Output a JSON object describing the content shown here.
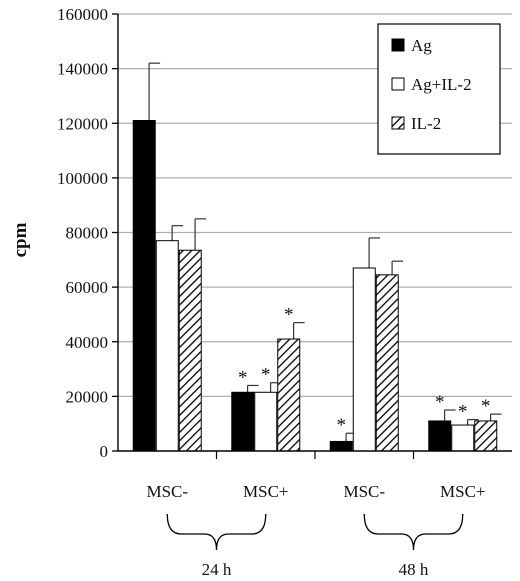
{
  "chart_data": {
    "type": "bar",
    "title": "",
    "xlabel": "",
    "ylabel": "cpm",
    "ylim": [
      0,
      160000
    ],
    "yticks": [
      0,
      20000,
      40000,
      60000,
      80000,
      100000,
      120000,
      140000,
      160000
    ],
    "ytick_labels": [
      "0",
      "20000",
      "40000",
      "60000",
      "80000",
      "100000",
      "120000",
      "140000",
      "160000"
    ],
    "grid": "horizontal",
    "legend_position": "top-right",
    "categories": [
      "MSC-",
      "MSC+",
      "MSC-",
      "MSC+"
    ],
    "groups": [
      {
        "label": "24 h",
        "categories": [
          0,
          1
        ]
      },
      {
        "label": "48 h",
        "categories": [
          2,
          3
        ]
      }
    ],
    "series": [
      {
        "name": "Ag",
        "style": "solid-black",
        "values": [
          121000,
          21500,
          3500,
          11000
        ],
        "errors": [
          21000,
          2500,
          3000,
          4000
        ],
        "significant": [
          false,
          true,
          true,
          true
        ]
      },
      {
        "name": "Ag+IL-2",
        "style": "white",
        "values": [
          77000,
          21500,
          67000,
          9500
        ],
        "errors": [
          5500,
          3500,
          11000,
          2000
        ],
        "significant": [
          false,
          true,
          false,
          true
        ]
      },
      {
        "name": "IL-2",
        "style": "hatched",
        "values": [
          73500,
          41000,
          64500,
          11000
        ],
        "errors": [
          11500,
          6000,
          5000,
          2500
        ],
        "significant": [
          false,
          true,
          false,
          true
        ]
      }
    ],
    "annotation_symbol": "*",
    "colors": {
      "solid": "#000000",
      "white": "#ffffff",
      "hatch": "#000000",
      "grid": "#b0b0b0"
    }
  }
}
